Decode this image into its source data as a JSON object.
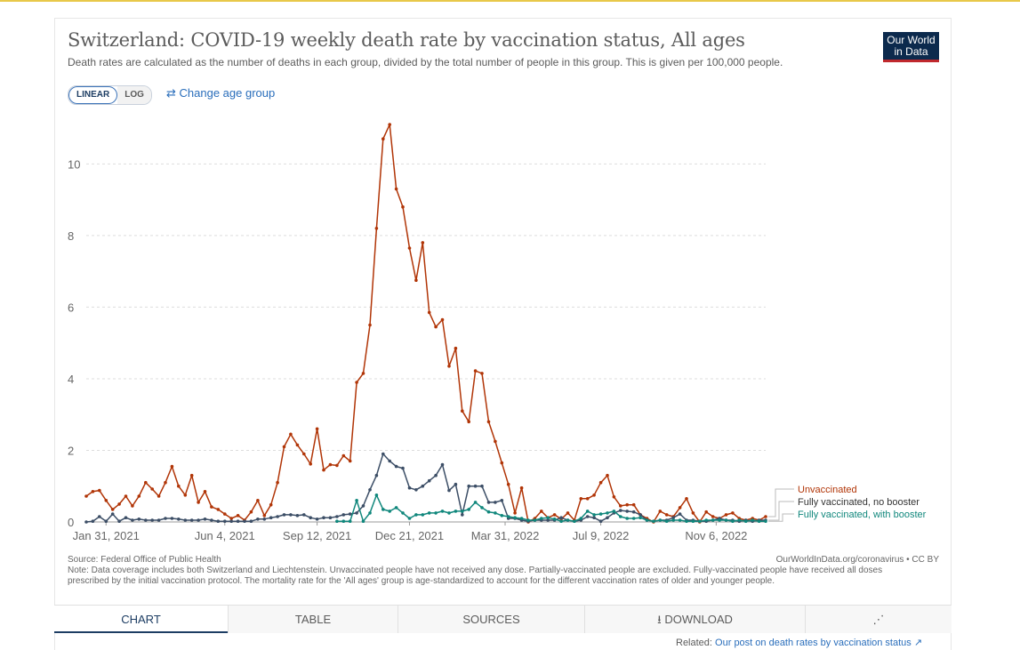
{
  "header": {
    "title": "Switzerland: COVID-19 weekly death rate by vaccination status, All ages",
    "subtitle": "Death rates are calculated as the number of deaths in each group, divided by the total number of people in this group. This is given per 100,000 people.",
    "logo_line1": "Our World",
    "logo_line2": "in Data"
  },
  "controls": {
    "linear_label": "LINEAR",
    "log_label": "LOG",
    "age_group_label": "Change age group",
    "active_scale": "linear"
  },
  "footer": {
    "source": "Source: Federal Office of Public Health",
    "credit": "OurWorldInData.org/coronavirus • CC BY",
    "note": "Note: Data coverage includes both Switzerland and Liechtenstein. Unvaccinated people have not received any dose. Partially-vaccinated people are excluded. Fully-vaccinated people have received all doses prescribed by the initial vaccination protocol. The mortality rate for the 'All ages' group is age-standardized to account for the different vaccination rates of older and younger people."
  },
  "tabs": [
    {
      "label": "CHART",
      "active": true
    },
    {
      "label": "TABLE",
      "active": false
    },
    {
      "label": "SOURCES",
      "active": false
    },
    {
      "label": "DOWNLOAD",
      "active": false
    },
    {
      "label": "",
      "active": false
    }
  ],
  "related": {
    "prefix": "Related:",
    "link_text": "Our post on death rates by vaccination status"
  },
  "colors": {
    "unvaccinated": "#b13507",
    "fully_no_booster": "#3c4e66",
    "fully_with_booster": "#10877c",
    "accent": "#2a6ebb",
    "logo_bg": "#0c2a4d"
  },
  "chart_data": {
    "type": "line",
    "x_unit": "weeks since Jan 10, 2021",
    "x_start_date": "2021-01-10",
    "x": [
      0,
      1,
      2,
      3,
      4,
      5,
      6,
      7,
      8,
      9,
      10,
      11,
      12,
      13,
      14,
      15,
      16,
      17,
      18,
      19,
      20,
      21,
      22,
      23,
      24,
      25,
      26,
      27,
      28,
      29,
      30,
      31,
      32,
      33,
      34,
      35,
      36,
      37,
      38,
      39,
      40,
      41,
      42,
      43,
      44,
      45,
      46,
      47,
      48,
      49,
      50,
      51,
      52,
      53,
      54,
      55,
      56,
      57,
      58,
      59,
      60,
      61,
      62,
      63,
      64,
      65,
      66,
      67,
      68,
      69,
      70,
      71,
      72,
      73,
      74,
      75,
      76,
      77,
      78,
      79,
      80,
      81,
      82,
      83,
      84,
      85,
      86,
      87,
      88,
      89,
      90,
      91,
      92,
      93,
      94,
      95,
      96,
      97,
      98,
      99,
      100,
      101,
      102,
      103
    ],
    "xticks": [
      {
        "value": 3,
        "label": "Jan 31, 2021"
      },
      {
        "value": 21,
        "label": "Jun 4, 2021"
      },
      {
        "value": 35,
        "label": "Sep 12, 2021"
      },
      {
        "value": 49,
        "label": "Dec 21, 2021"
      },
      {
        "value": 63.5,
        "label": "Mar 31, 2022"
      },
      {
        "value": 78,
        "label": "Jul 9, 2022"
      },
      {
        "value": 95.5,
        "label": "Nov 6, 2022"
      }
    ],
    "yticks": [
      0,
      2,
      4,
      6,
      8,
      10
    ],
    "ylim": [
      0,
      11.3
    ],
    "xlim": [
      0,
      103
    ],
    "grid": "horizontal-dashed",
    "legend_position": "right",
    "series": [
      {
        "name": "Unvaccinated",
        "color": "#b13507",
        "values": [
          0.72,
          0.85,
          0.88,
          0.6,
          0.35,
          0.5,
          0.72,
          0.45,
          0.72,
          1.1,
          0.92,
          0.72,
          1.1,
          1.55,
          1.0,
          0.75,
          1.3,
          0.55,
          0.85,
          0.42,
          0.35,
          0.22,
          0.1,
          0.18,
          0.05,
          0.28,
          0.6,
          0.18,
          0.48,
          1.1,
          2.1,
          2.45,
          2.15,
          1.9,
          1.62,
          2.6,
          1.45,
          1.6,
          1.58,
          1.85,
          1.7,
          3.9,
          4.15,
          5.5,
          8.2,
          10.7,
          11.1,
          9.3,
          8.8,
          7.65,
          6.75,
          7.8,
          5.85,
          5.45,
          5.65,
          4.35,
          4.85,
          3.1,
          2.8,
          4.22,
          4.15,
          2.8,
          2.25,
          1.65,
          1.05,
          0.25,
          0.95,
          0.0,
          0.1,
          0.3,
          0.12,
          0.2,
          0.08,
          0.25,
          0.05,
          0.65,
          0.65,
          0.75,
          1.1,
          1.3,
          0.7,
          0.45,
          0.48,
          0.48,
          0.2,
          0.1,
          0.0,
          0.3,
          0.2,
          0.15,
          0.4,
          0.65,
          0.25,
          0.0,
          0.28,
          0.15,
          0.1,
          0.2,
          0.25,
          0.1,
          0.05,
          0.1,
          0.05,
          0.15
        ]
      },
      {
        "name": "Fully vaccinated, no booster",
        "color": "#3c4e66",
        "values": [
          0.0,
          0.02,
          0.15,
          0.02,
          0.22,
          0.02,
          0.12,
          0.05,
          0.08,
          0.05,
          0.05,
          0.05,
          0.1,
          0.1,
          0.08,
          0.05,
          0.05,
          0.05,
          0.08,
          0.05,
          0.02,
          0.02,
          0.02,
          0.02,
          0.02,
          0.02,
          0.08,
          0.08,
          0.12,
          0.15,
          0.2,
          0.2,
          0.18,
          0.2,
          0.12,
          0.08,
          0.12,
          0.12,
          0.15,
          0.2,
          0.22,
          0.25,
          0.45,
          0.9,
          1.3,
          1.9,
          1.7,
          1.55,
          1.5,
          0.95,
          0.9,
          1.0,
          1.15,
          1.3,
          1.6,
          0.88,
          1.05,
          0.2,
          1.0,
          1.0,
          1.0,
          0.55,
          0.55,
          0.6,
          0.1,
          0.1,
          0.05,
          0.02,
          0.05,
          0.05,
          0.05,
          0.05,
          0.12,
          0.05,
          0.02,
          0.05,
          0.15,
          0.12,
          0.02,
          0.12,
          0.25,
          0.32,
          0.3,
          0.28,
          0.2,
          0.05,
          0.02,
          0.05,
          0.05,
          0.12,
          0.22,
          0.05,
          0.05,
          0.02,
          0.02,
          0.05,
          0.1,
          0.05,
          0.05,
          0.02,
          0.05,
          0.02,
          0.05,
          0.05
        ]
      },
      {
        "name": "Fully vaccinated, with booster",
        "color": "#10877c",
        "values": [
          null,
          null,
          null,
          null,
          null,
          null,
          null,
          null,
          null,
          null,
          null,
          null,
          null,
          null,
          null,
          null,
          null,
          null,
          null,
          null,
          null,
          null,
          null,
          null,
          null,
          null,
          null,
          null,
          null,
          null,
          null,
          null,
          null,
          null,
          null,
          null,
          null,
          null,
          0.02,
          0.02,
          0.02,
          0.6,
          0.02,
          0.25,
          0.75,
          0.35,
          0.3,
          0.4,
          0.25,
          0.1,
          0.2,
          0.2,
          0.25,
          0.25,
          0.3,
          0.25,
          0.3,
          0.3,
          0.35,
          0.55,
          0.4,
          0.28,
          0.25,
          0.18,
          0.15,
          0.12,
          0.1,
          0.05,
          0.05,
          0.1,
          0.12,
          0.08,
          0.02,
          0.05,
          0.02,
          0.1,
          0.3,
          0.2,
          0.22,
          0.25,
          0.3,
          0.15,
          0.1,
          0.1,
          0.12,
          0.05,
          0.02,
          0.05,
          0.02,
          0.05,
          0.05,
          0.02,
          0.02,
          0.02,
          0.05,
          0.05,
          0.05,
          0.05,
          0.02,
          0.05,
          0.02,
          0.05,
          0.02,
          0.02
        ]
      }
    ]
  }
}
